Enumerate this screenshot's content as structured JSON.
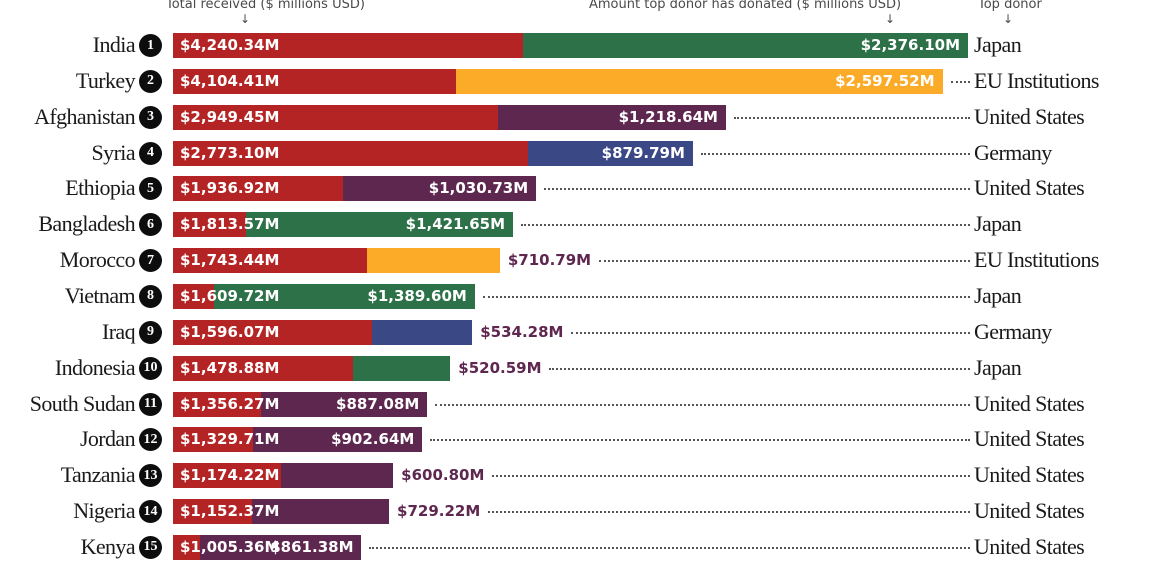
{
  "headers": {
    "total": "Total received ($ millions USD)",
    "donor_amount": "Amount top donor has donated ($ millions USD)",
    "top_donor": "Top donor",
    "arrow": "↓"
  },
  "colors": {
    "total": "#b52424",
    "Japan": "#2d7148",
    "EU Institutions": "#fbab28",
    "United States": "#5e2750",
    "Germany": "#3b4886",
    "outside_label": "#5e2750"
  },
  "chart_data": {
    "type": "bar",
    "orientation": "horizontal",
    "title": "",
    "xlabel": "Total received ($ millions USD)",
    "categories": [
      "India",
      "Turkey",
      "Afghanistan",
      "Syria",
      "Ethiopia",
      "Bangladesh",
      "Morocco",
      "Vietnam",
      "Iraq",
      "Indonesia",
      "South Sudan",
      "Jordan",
      "Tanzania",
      "Nigeria",
      "Kenya"
    ],
    "ranks": [
      "1",
      "2",
      "3",
      "4",
      "5",
      "6",
      "7",
      "8",
      "9",
      "10",
      "11",
      "12",
      "13",
      "14",
      "15"
    ],
    "series": [
      {
        "name": "Total received",
        "values": [
          4240.34,
          4104.41,
          2949.45,
          2773.1,
          1936.92,
          1813.57,
          1743.44,
          1609.72,
          1596.07,
          1478.88,
          1356.27,
          1329.71,
          1174.22,
          1152.37,
          1005.36
        ],
        "labels": [
          "$4,240.34M",
          "$4,104.41M",
          "$2,949.45M",
          "$2,773.10M",
          "$1,936.92M",
          "$1,813.57M",
          "$1,743.44M",
          "$1,609.72M",
          "$1,596.07M",
          "$1,478.88M",
          "$1,356.27M",
          "$1,329.71M",
          "$1,174.22M",
          "$1,152.37M",
          "$1,005.36M"
        ]
      },
      {
        "name": "Amount top donor has donated",
        "values": [
          2376.1,
          2597.52,
          1218.64,
          879.79,
          1030.73,
          1421.65,
          710.79,
          1389.6,
          534.28,
          520.59,
          887.08,
          902.64,
          600.8,
          729.22,
          861.38
        ],
        "labels": [
          "$2,376.10M",
          "$2,597.52M",
          "$1,218.64M",
          "$879.79M",
          "$1,030.73M",
          "$1,421.65M",
          "$710.79M",
          "$1,389.60M",
          "$534.28M",
          "$520.59M",
          "$887.08M",
          "$902.64M",
          "$600.80M",
          "$729.22M",
          "$861.38M"
        ]
      }
    ],
    "top_donor": [
      "Japan",
      "EU Institutions",
      "United States",
      "Germany",
      "United States",
      "Japan",
      "EU Institutions",
      "Japan",
      "Germany",
      "Japan",
      "United States",
      "United States",
      "United States",
      "United States",
      "United States"
    ],
    "xlim": [
      0,
      4240.34
    ]
  }
}
